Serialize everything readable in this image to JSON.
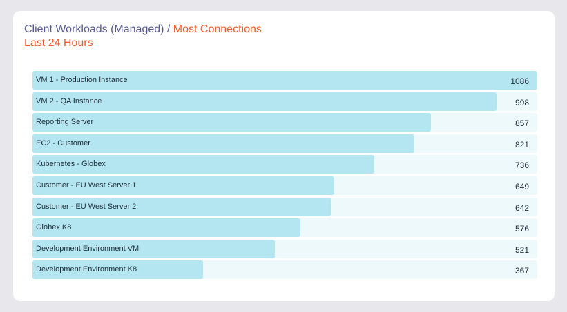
{
  "header": {
    "title_primary": "Client Workloads (Managed) / ",
    "title_accent": "Most Connections",
    "subtitle": "Last 24 Hours"
  },
  "colors": {
    "title": "#575a8e",
    "accent": "#f05a28",
    "bar": "#b4e6f1",
    "track": "#edf9fb"
  },
  "chart_data": {
    "type": "bar",
    "orientation": "horizontal",
    "title": "Client Workloads (Managed) / Most Connections",
    "subtitle": "Last 24 Hours",
    "xlabel": "",
    "ylabel": "",
    "categories": [
      "VM 1 - Production Instance",
      "VM 2 - QA Instance",
      "Reporting Server",
      "EC2 - Customer",
      "Kubernetes - Globex",
      "Customer - EU West Server 1",
      "Customer - EU West Server 2",
      "Globex K8",
      "Development Environment VM",
      "Development Environment K8"
    ],
    "values": [
      1086,
      998,
      857,
      821,
      736,
      649,
      642,
      576,
      521,
      367
    ],
    "xlim": [
      0,
      1086
    ],
    "grid": false,
    "legend": null
  },
  "rows": [
    {
      "label": "VM 1 - Production Instance",
      "value": "1086"
    },
    {
      "label": "VM 2 - QA Instance",
      "value": "998"
    },
    {
      "label": "Reporting Server",
      "value": "857"
    },
    {
      "label": "EC2 - Customer",
      "value": "821"
    },
    {
      "label": "Kubernetes - Globex",
      "value": "736"
    },
    {
      "label": "Customer - EU West Server 1",
      "value": "649"
    },
    {
      "label": "Customer - EU West Server 2",
      "value": "642"
    },
    {
      "label": "Globex K8",
      "value": "576"
    },
    {
      "label": "Development Environment VM",
      "value": "521"
    },
    {
      "label": "Development Environment K8",
      "value": "367"
    }
  ]
}
